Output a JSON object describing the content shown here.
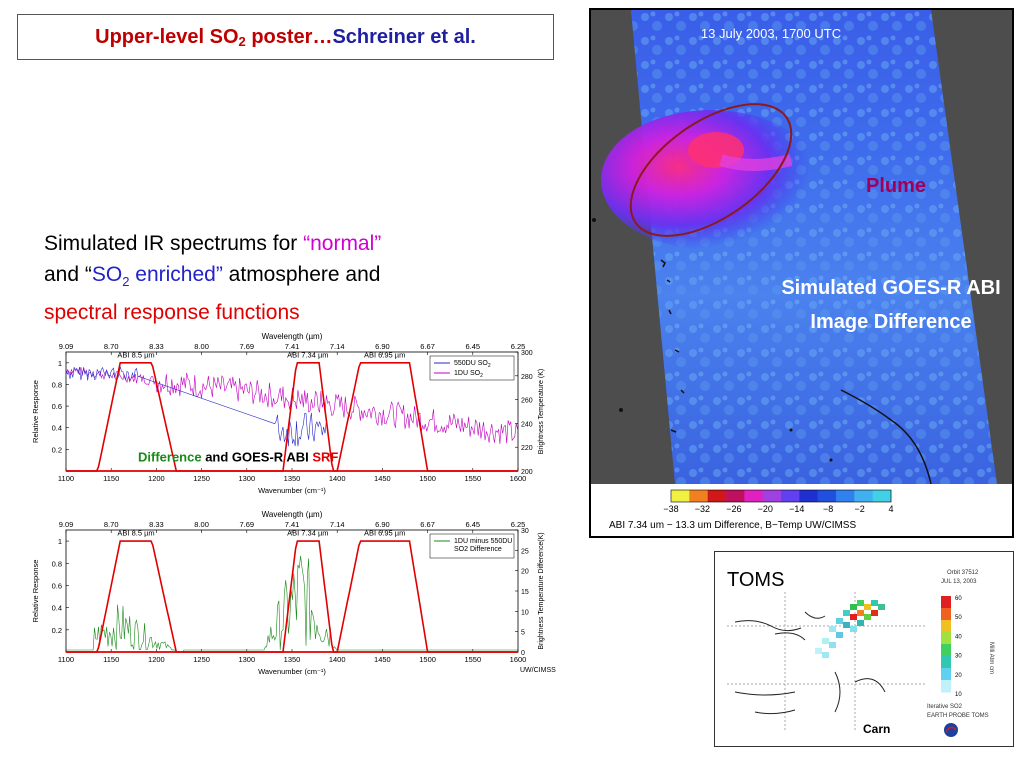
{
  "poster": {
    "title_prefix": "Upper-level SO",
    "title_sub": "2",
    "title_mid": " poster…",
    "title_authors": "Schreiner et al."
  },
  "intro": {
    "line1_a": "Simulated IR spectrums for  ",
    "line1_b": "“normal”",
    "line2_a": "and “",
    "line2_b": "SO",
    "line2_sub": "2",
    "line2_c": " enriched”",
    "line2_d": " atmosphere and",
    "line3": "spectral response functions"
  },
  "chart_data": [
    {
      "type": "line",
      "top_axis_label": "Wavelength (µm)",
      "top_ticks": [
        "9.09",
        "8.70",
        "8.33",
        "8.00",
        "7.69",
        "7.41",
        "7.14",
        "6.90",
        "6.67",
        "6.45",
        "6.25"
      ],
      "xlabel": "Wavenumber (cm⁻¹)",
      "ylabel": "Relative Response",
      "y2label": "Brightness Temperature (K)",
      "xlim": [
        1100,
        1600
      ],
      "ylim": [
        0,
        1.1
      ],
      "y2lim": [
        200,
        300
      ],
      "x_ticks": [
        1100,
        1150,
        1200,
        1250,
        1300,
        1350,
        1400,
        1450,
        1500,
        1550,
        1600
      ],
      "y_ticks": [
        0.2,
        0.4,
        0.6,
        0.8,
        1
      ],
      "y2_ticks": [
        200,
        220,
        240,
        260,
        280,
        300
      ],
      "srf_labels": [
        "ABI 8.5 µm",
        "ABI 7.34 µm",
        "ABI 6.95 µm"
      ],
      "srf_bands": [
        [
          1135,
          1160,
          1195,
          1222
        ],
        [
          1340,
          1355,
          1380,
          1395
        ],
        [
          1400,
          1425,
          1480,
          1500
        ]
      ],
      "legend": [
        {
          "name": "550DU SO",
          "sub": "2",
          "color": "#2a2acc"
        },
        {
          "name": "1DU SO",
          "sub": "2",
          "color": "#c000c0"
        }
      ],
      "overlay": {
        "a": "Difference",
        "b": " and GOES-R ABI ",
        "c": "SRF"
      }
    },
    {
      "type": "line",
      "top_axis_label": "Wavelength (µm)",
      "top_ticks": [
        "9.09",
        "8.70",
        "8.33",
        "8.00",
        "7.69",
        "7.41",
        "7.14",
        "6.90",
        "6.67",
        "6.45",
        "6.25"
      ],
      "xlabel": "Wavenumber (cm⁻¹)",
      "ylabel": "Relative Response",
      "y2label": "Brightness Temperature Difference(K)",
      "xlim": [
        1100,
        1600
      ],
      "ylim": [
        0,
        1.1
      ],
      "y2lim": [
        0,
        30
      ],
      "x_ticks": [
        1100,
        1150,
        1200,
        1250,
        1300,
        1350,
        1400,
        1450,
        1500,
        1550,
        1600
      ],
      "y_ticks": [
        0.2,
        0.4,
        0.6,
        0.8,
        1
      ],
      "y2_ticks": [
        0,
        5,
        10,
        15,
        20,
        25,
        30
      ],
      "srf_labels": [
        "ABI 8.5 µm",
        "ABI 7.34 µm",
        "ABI 6.95 µm"
      ],
      "srf_bands": [
        [
          1135,
          1160,
          1195,
          1222
        ],
        [
          1340,
          1355,
          1380,
          1395
        ],
        [
          1400,
          1425,
          1480,
          1500
        ]
      ],
      "legend": [
        {
          "name": "1DU minus 550DU",
          "name2": "SO",
          "sub": "2",
          "name3": " Difference",
          "color": "#1a8a1a"
        }
      ],
      "credit": "UW/CIMSS"
    }
  ],
  "satellite": {
    "timestamp": "13 July 2003, 1700 UTC",
    "plume_label": "Plume",
    "caption_line1": "Simulated GOES-R ABI",
    "caption_line2": "Image Difference",
    "colorbar_ticks": [
      "−38",
      "−32",
      "−26",
      "−20",
      "−14",
      "−8",
      "−2",
      "4"
    ],
    "colorbar_caption": "ABI 7.34 um − 13.3 um Difference, B−Temp  UW/CIMSS",
    "colors": {
      "ellipse": "#8b1a1a",
      "plume_label": "#a0005a",
      "caption": "#ffffff"
    }
  },
  "toms": {
    "label": "TOMS",
    "orbit": "Orbit 37512",
    "date": "JUL 13, 2003",
    "scale_ticks": [
      "60",
      "50",
      "40",
      "30",
      "20",
      "10"
    ],
    "scale_unit": "Milli Atm cm",
    "footer1": "Iterative SO2",
    "footer2": "EARTH PROBE TOMS",
    "carn": "Carn"
  }
}
